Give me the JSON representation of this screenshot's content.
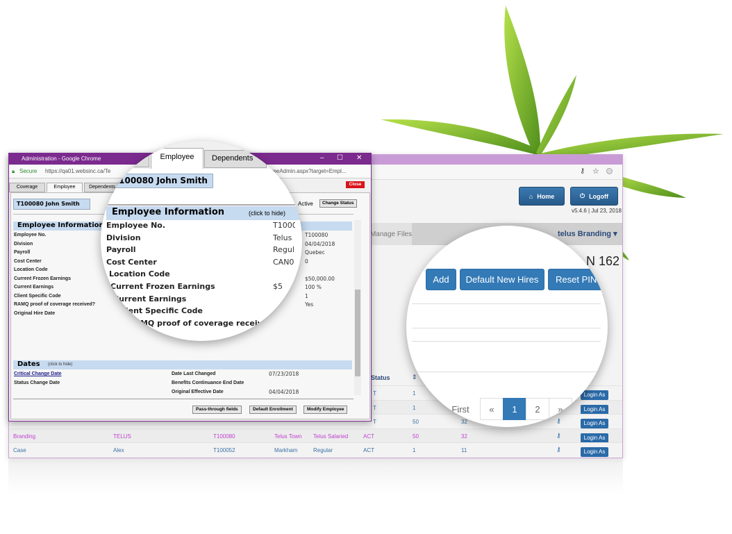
{
  "popup": {
    "window_title": "Administration - Google Chrome",
    "secure_label": "Secure",
    "url_left": "https://qa01.websinc.ca/Te",
    "url_right": "oyeeAdmin.aspx?target=Empl...",
    "tabs": [
      "Coverage",
      "Employee",
      "Dependents"
    ],
    "active_tab": "Employee",
    "close_label": "Close",
    "employee_name": "T100080 John Smith",
    "status": "Active",
    "change_status_label": "Change Status",
    "employee_info": {
      "title": "Employee Information",
      "hint": "(click to hide)",
      "labels": [
        "Employee No.",
        "Division",
        "Payroll",
        "Cost Center",
        "Location Code",
        "Current Frozen Earnings",
        "Current Earnings",
        "Client Specific Code",
        "RAMQ proof of coverage received?",
        "Original Hire Date"
      ],
      "values": [
        "T100080",
        "04/04/2018",
        "Quebec",
        "0",
        "",
        "$50,000.00",
        "100 %",
        "1",
        "Yes",
        ""
      ]
    },
    "dates": {
      "title": "Dates",
      "hint": "(click to hide)",
      "left_labels": [
        "Critical Change Date",
        "Status Change Date"
      ],
      "right_labels": [
        "Date Last Changed",
        "Benefits Continuance End Date",
        "Original Effective Date"
      ],
      "right_values": [
        "07/23/2018",
        "",
        "04/04/2018"
      ]
    },
    "buttons": [
      "Pass-through fields",
      "Default Enrollment",
      "Modify Employee"
    ]
  },
  "magnifier_left": {
    "tabs": [
      "Employee",
      "Dependents"
    ],
    "employee_name": "T100080 John Smith",
    "title": "Employee Information",
    "hint": "(click to hide)",
    "labels": [
      "Employee No.",
      "Division",
      "Payroll",
      "Cost Center",
      "Location Code",
      "Current Frozen Earnings",
      "Current Earnings",
      "Client Specific Code",
      "RAMQ proof of coverage received?"
    ],
    "values": [
      "T1000",
      "Telus",
      "Regul",
      "CAN0",
      "",
      "$5",
      "",
      "",
      ""
    ]
  },
  "back_window": {
    "home_label": "Home",
    "logoff_label": "Logoff",
    "version": "v5.4.6 | Jul 23, 2018",
    "nav_item": "Manage Files",
    "branding_menu": "telus Branding",
    "heading_fragment": "N 162",
    "table": {
      "status_header": "Status",
      "login_label": "Login As",
      "rows": [
        {
          "c1": "",
          "c2": "",
          "c3": "",
          "c4": "",
          "c5": "",
          "status": "T",
          "n1": "1",
          "n2": "",
          "highlight": false
        },
        {
          "c1": "",
          "c2": "",
          "c3": "",
          "c4": "",
          "c5": "",
          "status": "T",
          "n1": "1",
          "n2": "",
          "highlight": false
        },
        {
          "c1": "",
          "c2": "",
          "c3": "",
          "c4": "",
          "c5": "",
          "status": "T",
          "n1": "50",
          "n2": "32",
          "highlight": false
        },
        {
          "c1": "Branding",
          "c2": "TELUS",
          "c3": "T100080",
          "c4": "Telus Town",
          "c5": "Telus Salaried",
          "status": "ACT",
          "n1": "50",
          "n2": "32",
          "highlight": true
        },
        {
          "c1": "Case",
          "c2": "Alex",
          "c3": "T100052",
          "c4": "Markham",
          "c5": "Regular",
          "status": "ACT",
          "n1": "1",
          "n2": "11",
          "highlight": false
        }
      ]
    }
  },
  "magnifier_right": {
    "buttons": [
      "Add",
      "Default New Hires",
      "Reset PIN"
    ],
    "pagination": [
      "First",
      "«",
      "1",
      "2",
      "»"
    ],
    "current_page": "1"
  },
  "colors": {
    "popup_titlebar": "#7b2a8e",
    "accent_blue": "#337ab7",
    "highlight_row": "#c040d0",
    "close_red": "#d9141b"
  }
}
